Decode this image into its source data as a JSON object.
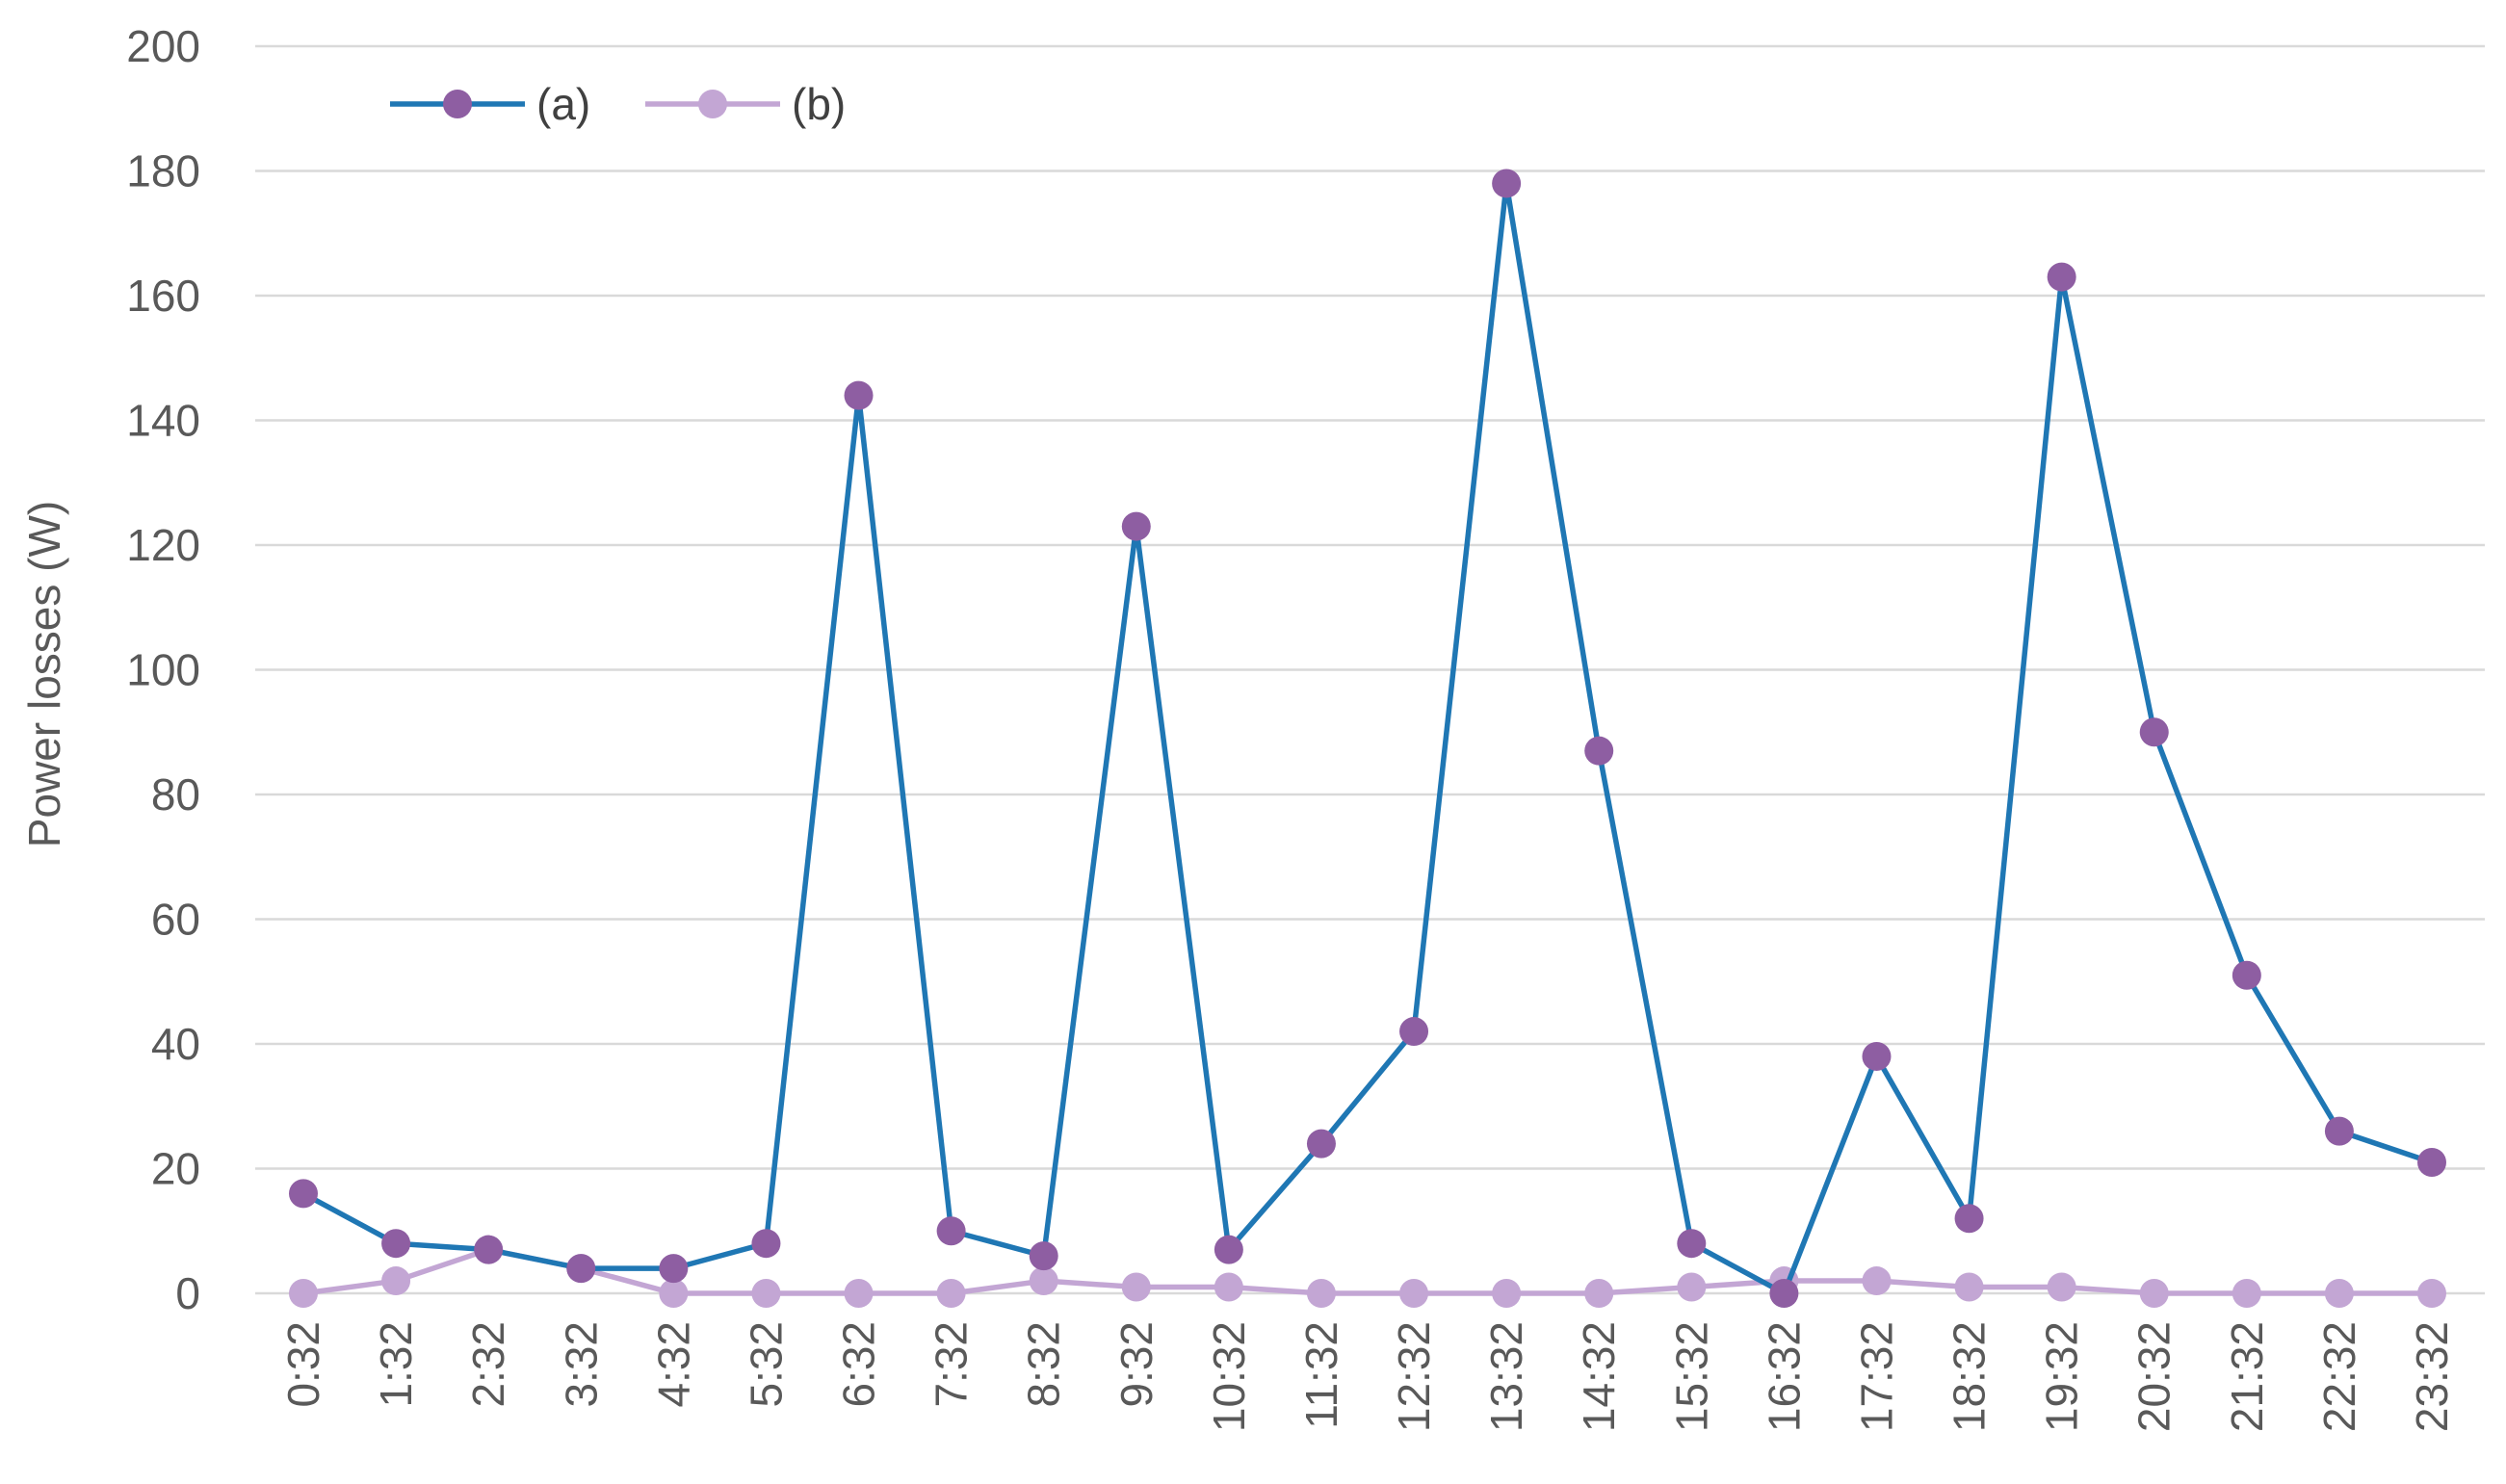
{
  "chart_data": {
    "type": "line",
    "title": "",
    "xlabel": "",
    "ylabel": "Power losses (W)",
    "ylim": [
      0,
      200
    ],
    "yticks": [
      0,
      20,
      40,
      60,
      80,
      100,
      120,
      140,
      160,
      180,
      200
    ],
    "grid": "horizontal",
    "legend_position": "top-left",
    "categories": [
      "0:32",
      "1:32",
      "2:32",
      "3:32",
      "4:32",
      "5:32",
      "6:32",
      "7:32",
      "8:32",
      "9:32",
      "10:32",
      "11:32",
      "12:32",
      "13:32",
      "14:32",
      "15:32",
      "16:32",
      "17:32",
      "18:32",
      "19:32",
      "20:32",
      "21:32",
      "22:32",
      "23:32"
    ],
    "series": [
      {
        "name": "(a)",
        "line_color": "#1f77b4",
        "marker_color": "#8e5ea2",
        "values": [
          16,
          8,
          7,
          4,
          4,
          8,
          144,
          10,
          6,
          123,
          7,
          24,
          42,
          178,
          87,
          8,
          0,
          38,
          12,
          163,
          90,
          51,
          26,
          21
        ]
      },
      {
        "name": "(b)",
        "line_color": "#c3a6d4",
        "marker_color": "#c3a6d4",
        "values": [
          0,
          2,
          7,
          4,
          0,
          0,
          0,
          0,
          2,
          1,
          1,
          0,
          0,
          0,
          0,
          1,
          2,
          2,
          1,
          1,
          0,
          0,
          0,
          0
        ]
      }
    ]
  }
}
